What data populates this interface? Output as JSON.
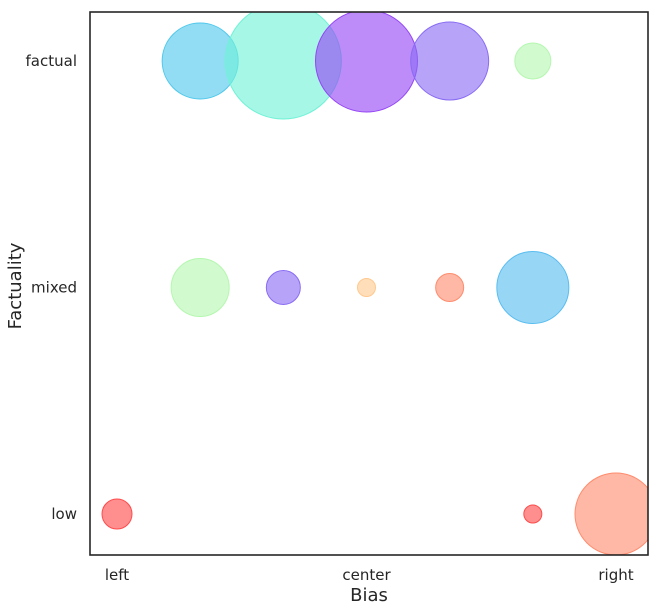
{
  "chart_data": {
    "type": "scatter",
    "title": "",
    "xlabel": "Bias",
    "ylabel": "Factuality",
    "x_categories": [
      "left",
      "left-center",
      "center-left",
      "center",
      "center-right",
      "right-center",
      "right"
    ],
    "x_tick_labels": [
      {
        "category": "left",
        "label": "left"
      },
      {
        "category": "center",
        "label": "center"
      },
      {
        "category": "right",
        "label": "right"
      }
    ],
    "y_categories": [
      "low",
      "mixed",
      "factual"
    ],
    "grid": false,
    "legend": "none",
    "points": [
      {
        "x": "left-center",
        "y": "factual",
        "size": 38,
        "color": "#4fc8ec"
      },
      {
        "x": "center-left",
        "y": "factual",
        "size": 58,
        "color": "#6ff2d6"
      },
      {
        "x": "center",
        "y": "factual",
        "size": 51,
        "color": "#9445f5"
      },
      {
        "x": "center-right",
        "y": "factual",
        "size": 39,
        "color": "#8a6cf3"
      },
      {
        "x": "right-center",
        "y": "factual",
        "size": 18,
        "color": "#b5f7b0"
      },
      {
        "x": "left-center",
        "y": "mixed",
        "size": 29,
        "color": "#b5f7b0"
      },
      {
        "x": "center-left",
        "y": "mixed",
        "size": 17,
        "color": "#8a6cf3"
      },
      {
        "x": "center",
        "y": "mixed",
        "size": 9,
        "color": "#ffc98e"
      },
      {
        "x": "center-right",
        "y": "mixed",
        "size": 14,
        "color": "#ff8c6e"
      },
      {
        "x": "right-center",
        "y": "mixed",
        "size": 36,
        "color": "#59bdf0"
      },
      {
        "x": "left",
        "y": "low",
        "size": 15,
        "color": "#ff4b4b"
      },
      {
        "x": "right-center",
        "y": "low",
        "size": 9,
        "color": "#ff4b4b"
      },
      {
        "x": "right",
        "y": "low",
        "size": 41,
        "color": "#ff8c6e"
      }
    ]
  }
}
